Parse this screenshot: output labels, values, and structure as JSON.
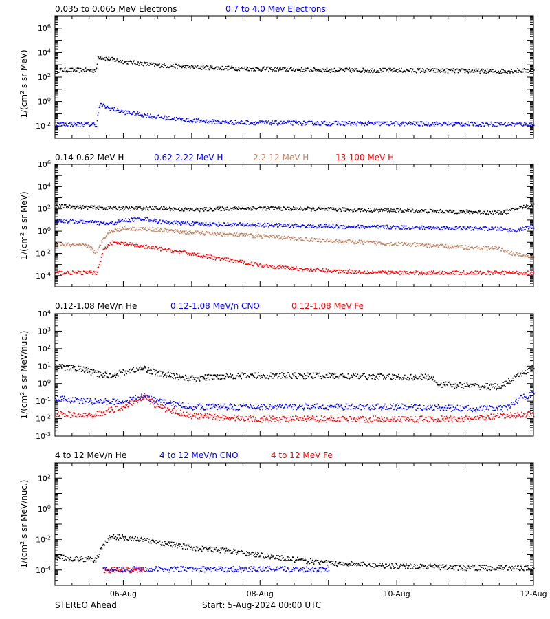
{
  "colors": {
    "black": "#000000",
    "blue": "#0000ff",
    "tan": "#c08060",
    "red": "#ff0000"
  },
  "footer": {
    "spacecraft": "STEREO Ahead",
    "start": "Start:  5-Aug-2024 00:00 UTC"
  },
  "chart_data": [
    {
      "type": "scatter",
      "ylabel": "1/(cm² s sr MeV)",
      "yscale": "log",
      "ylim": [
        0.001,
        10000000
      ],
      "yticks": [
        {
          "v": 0.01,
          "e": "-2"
        },
        {
          "v": 1,
          "e": "0"
        },
        {
          "v": 100,
          "e": "2"
        },
        {
          "v": 10000.0,
          "e": "4"
        },
        {
          "v": 1000000.0,
          "e": "6"
        }
      ],
      "xlim": [
        0,
        7
      ],
      "x_unit": "days since 5-Aug-2024 00:00 UTC",
      "xticklabels": [],
      "series": [
        {
          "name": "0.035 to 0.065 MeV Electrons",
          "color": "#000000",
          "points": [
            [
              0,
              400
            ],
            [
              0.6,
              400
            ],
            [
              0.62,
              5000
            ],
            [
              0.7,
              4000
            ],
            [
              1,
              2000
            ],
            [
              1.5,
              1000
            ],
            [
              2,
              700
            ],
            [
              3,
              500
            ],
            [
              4,
              400
            ],
            [
              5,
              380
            ],
            [
              6,
              350
            ],
            [
              6.5,
              320
            ],
            [
              6.6,
              350
            ],
            [
              7,
              380
            ]
          ]
        },
        {
          "name": "0.7 to 4.0 Mev Electrons",
          "color": "#0000ff",
          "points": [
            [
              0,
              0.015
            ],
            [
              0.6,
              0.015
            ],
            [
              0.65,
              0.6
            ],
            [
              0.8,
              0.3
            ],
            [
              1,
              0.15
            ],
            [
              1.5,
              0.06
            ],
            [
              2,
              0.03
            ],
            [
              2.5,
              0.022
            ],
            [
              3,
              0.02
            ],
            [
              4,
              0.018
            ],
            [
              5,
              0.017
            ],
            [
              6,
              0.016
            ],
            [
              7,
              0.015
            ]
          ]
        }
      ]
    },
    {
      "type": "scatter",
      "ylabel": "1/(cm² s sr MeV)",
      "yscale": "log",
      "ylim": [
        1e-05,
        1000000
      ],
      "yticks": [
        {
          "v": 0.0001,
          "e": "-4"
        },
        {
          "v": 0.01,
          "e": "-2"
        },
        {
          "v": 1,
          "e": "0"
        },
        {
          "v": 100,
          "e": "2"
        },
        {
          "v": 10000.0,
          "e": "4"
        },
        {
          "v": 1000000.0,
          "e": "6"
        }
      ],
      "xlim": [
        0,
        7
      ],
      "x_unit": "days since 5-Aug-2024 00:00 UTC",
      "xticklabels": [],
      "series": [
        {
          "name": "0.14-0.62 MeV H",
          "color": "#000000",
          "points": [
            [
              0,
              200
            ],
            [
              0.5,
              150
            ],
            [
              1,
              120
            ],
            [
              1.5,
              130
            ],
            [
              2,
              90
            ],
            [
              2.5,
              120
            ],
            [
              3,
              130
            ],
            [
              4,
              100
            ],
            [
              5,
              80
            ],
            [
              6,
              60
            ],
            [
              6.4,
              50
            ],
            [
              6.6,
              60
            ],
            [
              6.8,
              150
            ],
            [
              7,
              250
            ]
          ]
        },
        {
          "name": "0.62-2.22 MeV H",
          "color": "#0000ff",
          "points": [
            [
              0,
              10
            ],
            [
              0.5,
              7
            ],
            [
              0.8,
              5
            ],
            [
              1,
              10
            ],
            [
              1.3,
              15
            ],
            [
              1.5,
              8
            ],
            [
              2,
              5
            ],
            [
              3,
              4
            ],
            [
              4,
              3
            ],
            [
              5,
              2.5
            ],
            [
              6,
              2
            ],
            [
              6.5,
              1.8
            ],
            [
              6.7,
              1.2
            ],
            [
              7,
              3
            ]
          ]
        },
        {
          "name": "2.2-12 MeV H",
          "color": "#c08060",
          "points": [
            [
              0,
              0.08
            ],
            [
              0.5,
              0.05
            ],
            [
              0.6,
              0.01
            ],
            [
              0.7,
              0.3
            ],
            [
              0.8,
              1
            ],
            [
              1,
              2
            ],
            [
              1.5,
              1.5
            ],
            [
              2,
              0.8
            ],
            [
              3,
              0.4
            ],
            [
              4,
              0.15
            ],
            [
              5,
              0.08
            ],
            [
              6,
              0.04
            ],
            [
              6.5,
              0.03
            ],
            [
              6.7,
              0.01
            ],
            [
              7,
              0.005
            ]
          ]
        },
        {
          "name": "13-100 MeV H",
          "color": "#ff0000",
          "points": [
            [
              0,
              0.0002
            ],
            [
              0.6,
              0.0002
            ],
            [
              0.7,
              0.02
            ],
            [
              0.8,
              0.1
            ],
            [
              1,
              0.08
            ],
            [
              1.5,
              0.03
            ],
            [
              2,
              0.01
            ],
            [
              2.5,
              0.003
            ],
            [
              3,
              0.001
            ],
            [
              3.5,
              0.0005
            ],
            [
              4,
              0.0003
            ],
            [
              5,
              0.0002
            ],
            [
              6,
              0.0002
            ],
            [
              7,
              0.0002
            ]
          ]
        }
      ]
    },
    {
      "type": "scatter",
      "ylabel": "1/(cm² s sr MeV/nuc.)",
      "yscale": "log",
      "ylim": [
        0.001,
        10000
      ],
      "yticks": [
        {
          "v": 0.001,
          "e": "-3"
        },
        {
          "v": 0.01,
          "e": "-2"
        },
        {
          "v": 0.1,
          "e": "-1"
        },
        {
          "v": 1,
          "e": "0"
        },
        {
          "v": 10,
          "e": "1"
        },
        {
          "v": 100,
          "e": "2"
        },
        {
          "v": 1000,
          "e": "3"
        },
        {
          "v": 10000.0,
          "e": "4"
        }
      ],
      "xlim": [
        0,
        7
      ],
      "x_unit": "days since 5-Aug-2024 00:00 UTC",
      "xticklabels": [],
      "series": [
        {
          "name": "0.12-1.08 MeV/n He",
          "color": "#000000",
          "points": [
            [
              0,
              10
            ],
            [
              0.4,
              7
            ],
            [
              0.6,
              4
            ],
            [
              0.8,
              3
            ],
            [
              1,
              5
            ],
            [
              1.3,
              8
            ],
            [
              1.5,
              4
            ],
            [
              2,
              2
            ],
            [
              2.5,
              3
            ],
            [
              3,
              3
            ],
            [
              4,
              3
            ],
            [
              5,
              2.5
            ],
            [
              5.5,
              2.5
            ],
            [
              5.6,
              1
            ],
            [
              6,
              0.8
            ],
            [
              6.5,
              0.7
            ],
            [
              6.7,
              2
            ],
            [
              7,
              10
            ]
          ]
        },
        {
          "name": "0.12-1.08 MeV/n CNO",
          "color": "#0000ff",
          "points": [
            [
              0,
              0.15
            ],
            [
              0.5,
              0.1
            ],
            [
              1,
              0.1
            ],
            [
              1.3,
              0.2
            ],
            [
              1.5,
              0.1
            ],
            [
              2,
              0.05
            ],
            [
              3,
              0.05
            ],
            [
              4,
              0.05
            ],
            [
              5,
              0.05
            ],
            [
              6,
              0.04
            ],
            [
              6.6,
              0.04
            ],
            [
              6.8,
              0.15
            ],
            [
              7,
              0.3
            ]
          ]
        },
        {
          "name": "0.12-1.08 MeV Fe",
          "color": "#ff0000",
          "points": [
            [
              0,
              0.02
            ],
            [
              0.5,
              0.015
            ],
            [
              1,
              0.05
            ],
            [
              1.3,
              0.2
            ],
            [
              1.5,
              0.05
            ],
            [
              2,
              0.015
            ],
            [
              3,
              0.01
            ],
            [
              4,
              0.01
            ],
            [
              5,
              0.01
            ],
            [
              6,
              0.01
            ],
            [
              7,
              0.02
            ]
          ]
        }
      ]
    },
    {
      "type": "scatter",
      "ylabel": "1/(cm² s sr MeV/nuc.)",
      "yscale": "log",
      "ylim": [
        1e-05,
        1000
      ],
      "yticks": [
        {
          "v": 0.0001,
          "e": "-4"
        },
        {
          "v": 0.01,
          "e": "-2"
        },
        {
          "v": 1,
          "e": "0"
        },
        {
          "v": 100,
          "e": "2"
        }
      ],
      "xlim": [
        0,
        7
      ],
      "x_unit": "days since 5-Aug-2024 00:00 UTC",
      "xticklabels": [
        "06-Aug",
        "08-Aug",
        "10-Aug",
        "12-Aug"
      ],
      "xtick_positions": [
        1,
        3,
        5,
        7
      ],
      "series": [
        {
          "name": "4 to 12 MeV/n He",
          "color": "#000000",
          "points": [
            [
              0,
              0.0007
            ],
            [
              0.6,
              0.0005
            ],
            [
              0.7,
              0.005
            ],
            [
              0.8,
              0.015
            ],
            [
              1,
              0.015
            ],
            [
              1.5,
              0.007
            ],
            [
              2,
              0.003
            ],
            [
              2.5,
              0.002
            ],
            [
              3,
              0.001
            ],
            [
              3.5,
              0.0005
            ],
            [
              4,
              0.0003
            ],
            [
              5,
              0.0002
            ],
            [
              6,
              0.00015
            ],
            [
              7,
              0.00015
            ]
          ]
        },
        {
          "name": "4 to 12 MeV/n CNO",
          "color": "#0000ff",
          "points": [
            [
              0.7,
              0.00012
            ],
            [
              1,
              0.00012
            ],
            [
              1.5,
              0.00012
            ],
            [
              2,
              0.00012
            ],
            [
              3,
              0.00012
            ],
            [
              4,
              0.00012
            ]
          ]
        },
        {
          "name": "4 to 12 MeV Fe",
          "color": "#ff0000",
          "points": [
            [
              0.7,
              0.00011
            ],
            [
              1,
              0.00011
            ],
            [
              1.3,
              0.00011
            ]
          ]
        }
      ]
    }
  ]
}
